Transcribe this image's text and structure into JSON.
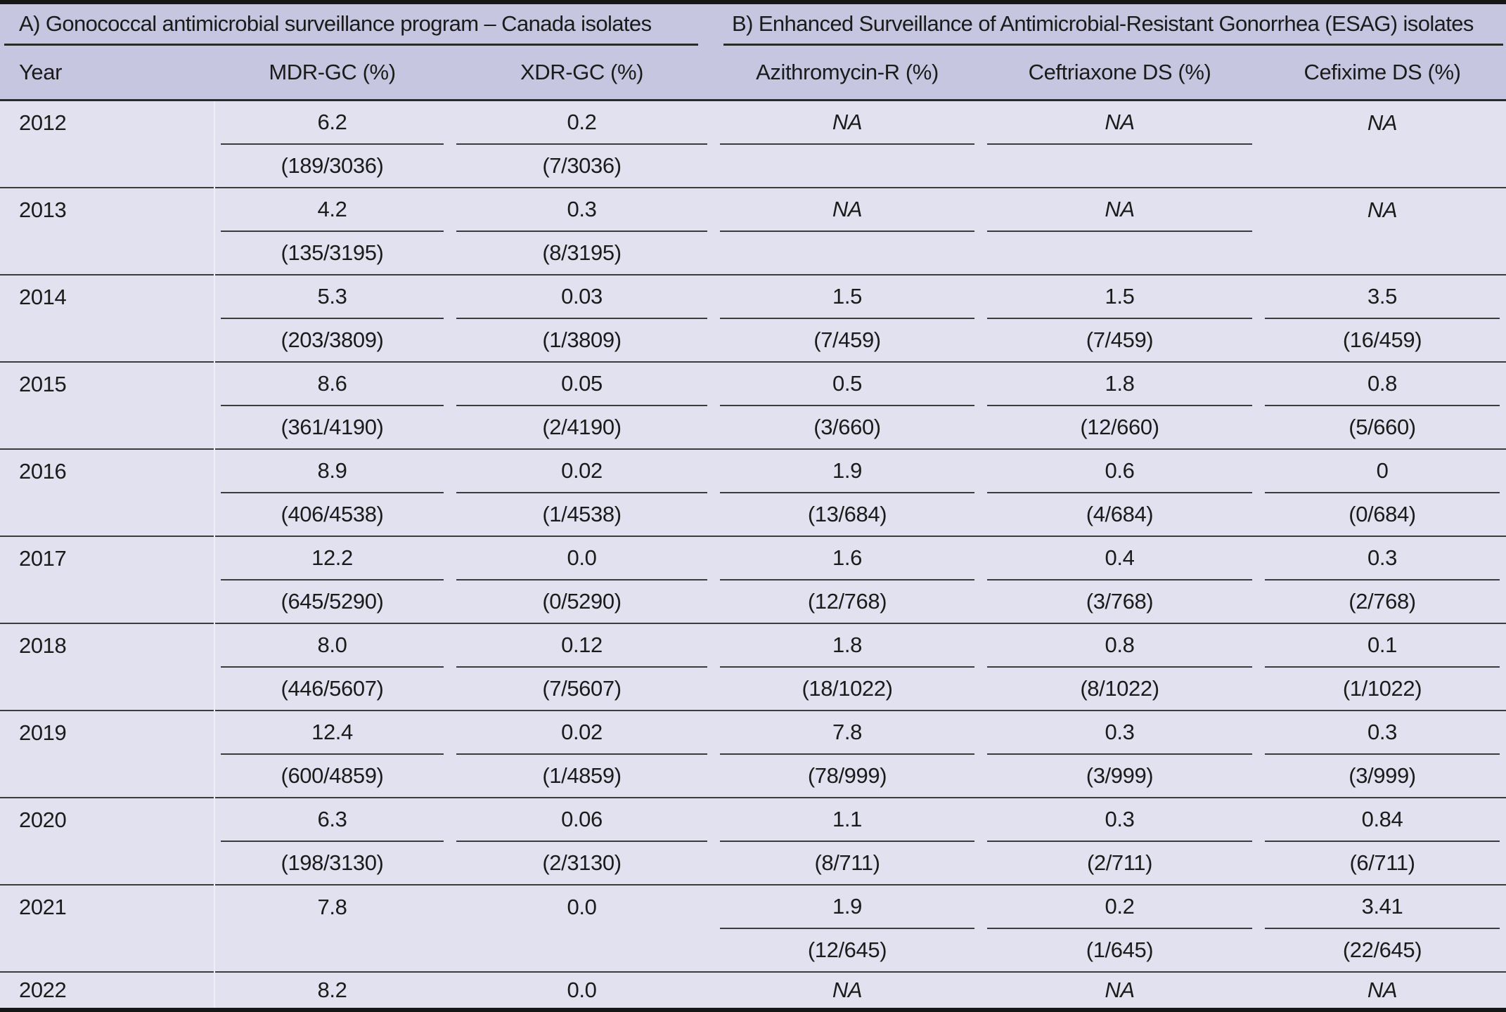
{
  "table": {
    "panel_a_title": "A) Gonococcal antimicrobial surveillance program – Canada isolates",
    "panel_b_title": "B) Enhanced Surveillance of Antimicrobial-Resistant Gonorrhea (ESAG) isolates",
    "columns": [
      "Year",
      "MDR-GC (%)",
      "XDR-GC (%)",
      "Azithromycin-R (%)",
      "Ceftriaxone DS (%)",
      "Cefixime DS (%)"
    ],
    "rows": [
      {
        "year": "2012",
        "cells": [
          {
            "value": "6.2",
            "fraction": "(189/3036)",
            "underline": true
          },
          {
            "value": "0.2",
            "fraction": "(7/3036)",
            "underline": true
          },
          {
            "value": "NA",
            "fraction": "",
            "underline": true
          },
          {
            "value": "NA",
            "fraction": "",
            "underline": true
          },
          {
            "value": "NA",
            "fraction": "",
            "underline": false
          }
        ]
      },
      {
        "year": "2013",
        "cells": [
          {
            "value": "4.2",
            "fraction": "(135/3195)",
            "underline": true
          },
          {
            "value": "0.3",
            "fraction": "(8/3195)",
            "underline": true
          },
          {
            "value": "NA",
            "fraction": "",
            "underline": true
          },
          {
            "value": "NA",
            "fraction": "",
            "underline": true
          },
          {
            "value": "NA",
            "fraction": "",
            "underline": false
          }
        ]
      },
      {
        "year": "2014",
        "cells": [
          {
            "value": "5.3",
            "fraction": "(203/3809)",
            "underline": true
          },
          {
            "value": "0.03",
            "fraction": "(1/3809)",
            "underline": true
          },
          {
            "value": "1.5",
            "fraction": "(7/459)",
            "underline": true
          },
          {
            "value": "1.5",
            "fraction": "(7/459)",
            "underline": true
          },
          {
            "value": "3.5",
            "fraction": "(16/459)",
            "underline": true
          }
        ]
      },
      {
        "year": "2015",
        "cells": [
          {
            "value": "8.6",
            "fraction": "(361/4190)",
            "underline": true
          },
          {
            "value": "0.05",
            "fraction": "(2/4190)",
            "underline": true
          },
          {
            "value": "0.5",
            "fraction": "(3/660)",
            "underline": true
          },
          {
            "value": "1.8",
            "fraction": "(12/660)",
            "underline": true
          },
          {
            "value": "0.8",
            "fraction": "(5/660)",
            "underline": true
          }
        ]
      },
      {
        "year": "2016",
        "cells": [
          {
            "value": "8.9",
            "fraction": "(406/4538)",
            "underline": true
          },
          {
            "value": "0.02",
            "fraction": "(1/4538)",
            "underline": true
          },
          {
            "value": "1.9",
            "fraction": "(13/684)",
            "underline": true
          },
          {
            "value": "0.6",
            "fraction": "(4/684)",
            "underline": true
          },
          {
            "value": "0",
            "fraction": "(0/684)",
            "underline": true
          }
        ]
      },
      {
        "year": "2017",
        "cells": [
          {
            "value": "12.2",
            "fraction": "(645/5290)",
            "underline": true
          },
          {
            "value": "0.0",
            "fraction": "(0/5290)",
            "underline": true
          },
          {
            "value": "1.6",
            "fraction": "(12/768)",
            "underline": true
          },
          {
            "value": "0.4",
            "fraction": "(3/768)",
            "underline": true
          },
          {
            "value": "0.3",
            "fraction": "(2/768)",
            "underline": true
          }
        ]
      },
      {
        "year": "2018",
        "cells": [
          {
            "value": "8.0",
            "fraction": "(446/5607)",
            "underline": true
          },
          {
            "value": "0.12",
            "fraction": "(7/5607)",
            "underline": true
          },
          {
            "value": "1.8",
            "fraction": "(18/1022)",
            "underline": true
          },
          {
            "value": "0.8",
            "fraction": "(8/1022)",
            "underline": true
          },
          {
            "value": "0.1",
            "fraction": "(1/1022)",
            "underline": true
          }
        ]
      },
      {
        "year": "2019",
        "cells": [
          {
            "value": "12.4",
            "fraction": "(600/4859)",
            "underline": true
          },
          {
            "value": "0.02",
            "fraction": "(1/4859)",
            "underline": true
          },
          {
            "value": "7.8",
            "fraction": "(78/999)",
            "underline": true
          },
          {
            "value": "0.3",
            "fraction": "(3/999)",
            "underline": true
          },
          {
            "value": "0.3",
            "fraction": "(3/999)",
            "underline": true
          }
        ]
      },
      {
        "year": "2020",
        "cells": [
          {
            "value": "6.3",
            "fraction": "(198/3130)",
            "underline": true
          },
          {
            "value": "0.06",
            "fraction": "(2/3130)",
            "underline": true
          },
          {
            "value": "1.1",
            "fraction": "(8/711)",
            "underline": true
          },
          {
            "value": "0.3",
            "fraction": "(2/711)",
            "underline": true
          },
          {
            "value": "0.84",
            "fraction": "(6/711)",
            "underline": true
          }
        ]
      },
      {
        "year": "2021",
        "cells": [
          {
            "value": "7.8",
            "fraction": "",
            "underline": false
          },
          {
            "value": "0.0",
            "fraction": "",
            "underline": false
          },
          {
            "value": "1.9",
            "fraction": "(12/645)",
            "underline": true
          },
          {
            "value": "0.2",
            "fraction": "(1/645)",
            "underline": true
          },
          {
            "value": "3.41",
            "fraction": "(22/645)",
            "underline": true
          }
        ]
      },
      {
        "year": "2022",
        "single": true,
        "cells": [
          {
            "value": "8.2",
            "fraction": "",
            "underline": false
          },
          {
            "value": "0.0",
            "fraction": "",
            "underline": false
          },
          {
            "value": "NA",
            "fraction": "",
            "underline": false
          },
          {
            "value": "NA",
            "fraction": "",
            "underline": false
          },
          {
            "value": "NA",
            "fraction": "",
            "underline": false
          }
        ]
      }
    ]
  },
  "colors": {
    "header_band": "#c6c6e0",
    "body_band": "#e1e1ef",
    "rule_dark": "#161616",
    "rule_mid": "#2a2a2a",
    "row_line": "#3c3c3c",
    "text": "#1b1b1b"
  }
}
